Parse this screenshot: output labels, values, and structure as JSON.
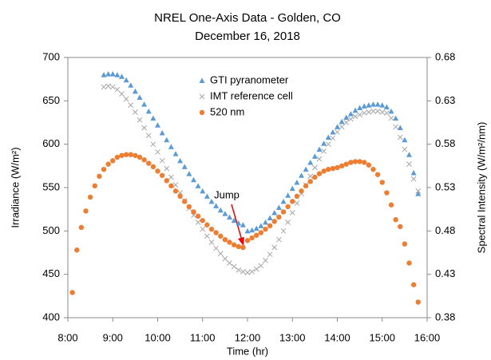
{
  "chart_data": {
    "type": "scatter",
    "title": "NREL One-Axis Data - Golden, CO",
    "subtitle": "December 16, 2018",
    "x_label": "Time (hr)",
    "y_label": "Irradiance (W/m²)",
    "y2_label": "Spectral Intensity (W/m²/nm)",
    "xlim": [
      8,
      16
    ],
    "xticks": [
      {
        "value": 8,
        "label": "8:00"
      },
      {
        "value": 9,
        "label": "9:00"
      },
      {
        "value": 10,
        "label": "10:00"
      },
      {
        "value": 11,
        "label": "11:00"
      },
      {
        "value": 12,
        "label": "12:00"
      },
      {
        "value": 13,
        "label": "13:00"
      },
      {
        "value": 14,
        "label": "14:00"
      },
      {
        "value": 15,
        "label": "15:00"
      },
      {
        "value": 16,
        "label": "16:00"
      }
    ],
    "ylim": [
      400,
      700
    ],
    "yticks": [
      400,
      450,
      500,
      550,
      600,
      650,
      700
    ],
    "y2lim": [
      0.38,
      0.68
    ],
    "y2ticks": [
      0.38,
      0.43,
      0.48,
      0.53,
      0.58,
      0.63,
      0.68
    ],
    "grid": false,
    "legend": "top-center",
    "annotations": [
      {
        "text": "Jump"
      }
    ],
    "series": [
      {
        "name": "GTI pyranometer",
        "color": "#5b9bd5",
        "marker": "triangle",
        "x": [
          8.8,
          8.9,
          9.0,
          9.1,
          9.2,
          9.3,
          9.4,
          9.5,
          9.6,
          9.7,
          9.8,
          9.9,
          10.0,
          10.1,
          10.2,
          10.3,
          10.4,
          10.5,
          10.6,
          10.7,
          10.8,
          10.9,
          11.0,
          11.1,
          11.2,
          11.3,
          11.4,
          11.5,
          11.6,
          11.7,
          11.8,
          11.9,
          12.0,
          12.1,
          12.2,
          12.3,
          12.4,
          12.5,
          12.6,
          12.7,
          12.8,
          12.9,
          13.0,
          13.1,
          13.2,
          13.3,
          13.4,
          13.5,
          13.6,
          13.7,
          13.8,
          13.9,
          14.0,
          14.1,
          14.2,
          14.3,
          14.4,
          14.5,
          14.6,
          14.7,
          14.8,
          14.9,
          15.0,
          15.1,
          15.2,
          15.3,
          15.4,
          15.5,
          15.6,
          15.7,
          15.8
        ],
        "values": [
          680,
          681,
          681,
          680,
          678,
          674,
          668,
          661,
          654,
          646,
          638,
          630,
          622,
          613,
          605,
          597,
          589,
          581,
          574,
          566,
          559,
          552,
          546,
          540,
          534,
          529,
          524,
          520,
          516,
          512,
          509,
          507,
          500,
          501,
          503,
          506,
          510,
          515,
          521,
          527,
          534,
          541,
          549,
          556,
          564,
          571,
          579,
          586,
          594,
          601,
          608,
          614,
          620,
          626,
          631,
          635,
          639,
          642,
          644,
          645,
          646,
          646,
          645,
          643,
          638,
          630,
          619,
          605,
          588,
          567,
          543
        ]
      },
      {
        "name": "IMT reference cell",
        "color": "#a5a5a5",
        "marker": "x",
        "x": [
          8.8,
          8.9,
          9.0,
          9.1,
          9.2,
          9.3,
          9.4,
          9.5,
          9.6,
          9.7,
          9.8,
          9.9,
          10.0,
          10.1,
          10.2,
          10.3,
          10.4,
          10.5,
          10.6,
          10.7,
          10.8,
          10.9,
          11.0,
          11.1,
          11.2,
          11.3,
          11.4,
          11.5,
          11.6,
          11.7,
          11.8,
          11.9,
          12.0,
          12.1,
          12.2,
          12.3,
          12.4,
          12.5,
          12.6,
          12.7,
          12.8,
          12.9,
          13.0,
          13.1,
          13.2,
          13.3,
          13.4,
          13.5,
          13.6,
          13.7,
          13.8,
          13.9,
          14.0,
          14.1,
          14.2,
          14.3,
          14.4,
          14.5,
          14.6,
          14.7,
          14.8,
          14.9,
          15.0,
          15.1,
          15.2,
          15.3,
          15.4,
          15.5,
          15.6,
          15.7,
          15.8
        ],
        "values": [
          666,
          667,
          666,
          663,
          658,
          652,
          645,
          637,
          628,
          619,
          610,
          600,
          591,
          581,
          572,
          562,
          553,
          544,
          535,
          526,
          518,
          510,
          502,
          494,
          487,
          480,
          474,
          468,
          463,
          459,
          455,
          453,
          452,
          453,
          456,
          460,
          466,
          473,
          481,
          490,
          500,
          510,
          521,
          532,
          543,
          553,
          563,
          573,
          583,
          592,
          600,
          607,
          614,
          620,
          625,
          629,
          632,
          634,
          636,
          637,
          638,
          638,
          637,
          636,
          630,
          620,
          608,
          594,
          577,
          560,
          546
        ]
      },
      {
        "name": "520 nm",
        "color": "#ed7d31",
        "marker": "circle",
        "axis": "y2",
        "x": [
          8.1,
          8.2,
          8.3,
          8.4,
          8.5,
          8.6,
          8.7,
          8.8,
          8.9,
          9.0,
          9.1,
          9.2,
          9.3,
          9.4,
          9.5,
          9.6,
          9.7,
          9.8,
          9.9,
          10.0,
          10.1,
          10.2,
          10.3,
          10.4,
          10.5,
          10.6,
          10.7,
          10.8,
          10.9,
          11.0,
          11.1,
          11.2,
          11.3,
          11.4,
          11.5,
          11.6,
          11.7,
          11.8,
          11.9,
          12.0,
          12.1,
          12.2,
          12.3,
          12.4,
          12.5,
          12.6,
          12.7,
          12.8,
          12.9,
          13.0,
          13.1,
          13.2,
          13.3,
          13.4,
          13.5,
          13.6,
          13.7,
          13.8,
          13.9,
          14.0,
          14.1,
          14.2,
          14.3,
          14.4,
          14.5,
          14.6,
          14.7,
          14.8,
          14.9,
          15.0,
          15.1,
          15.2,
          15.3,
          15.4,
          15.5,
          15.6,
          15.7,
          15.8
        ],
        "values": [
          0.409,
          0.458,
          0.484,
          0.503,
          0.519,
          0.532,
          0.543,
          0.551,
          0.557,
          0.561,
          0.565,
          0.567,
          0.568,
          0.568,
          0.567,
          0.565,
          0.562,
          0.558,
          0.554,
          0.549,
          0.544,
          0.538,
          0.532,
          0.526,
          0.52,
          0.514,
          0.508,
          0.502,
          0.497,
          0.492,
          0.487,
          0.482,
          0.478,
          0.474,
          0.47,
          0.467,
          0.464,
          0.462,
          0.461,
          0.469,
          0.472,
          0.475,
          0.478,
          0.482,
          0.486,
          0.491,
          0.496,
          0.502,
          0.508,
          0.514,
          0.52,
          0.526,
          0.532,
          0.537,
          0.542,
          0.546,
          0.549,
          0.551,
          0.552,
          0.553,
          0.555,
          0.557,
          0.559,
          0.56,
          0.56,
          0.559,
          0.556,
          0.551,
          0.545,
          0.536,
          0.524,
          0.51,
          0.493,
          0.485,
          0.465,
          0.443,
          0.418,
          0.398
        ]
      }
    ]
  }
}
